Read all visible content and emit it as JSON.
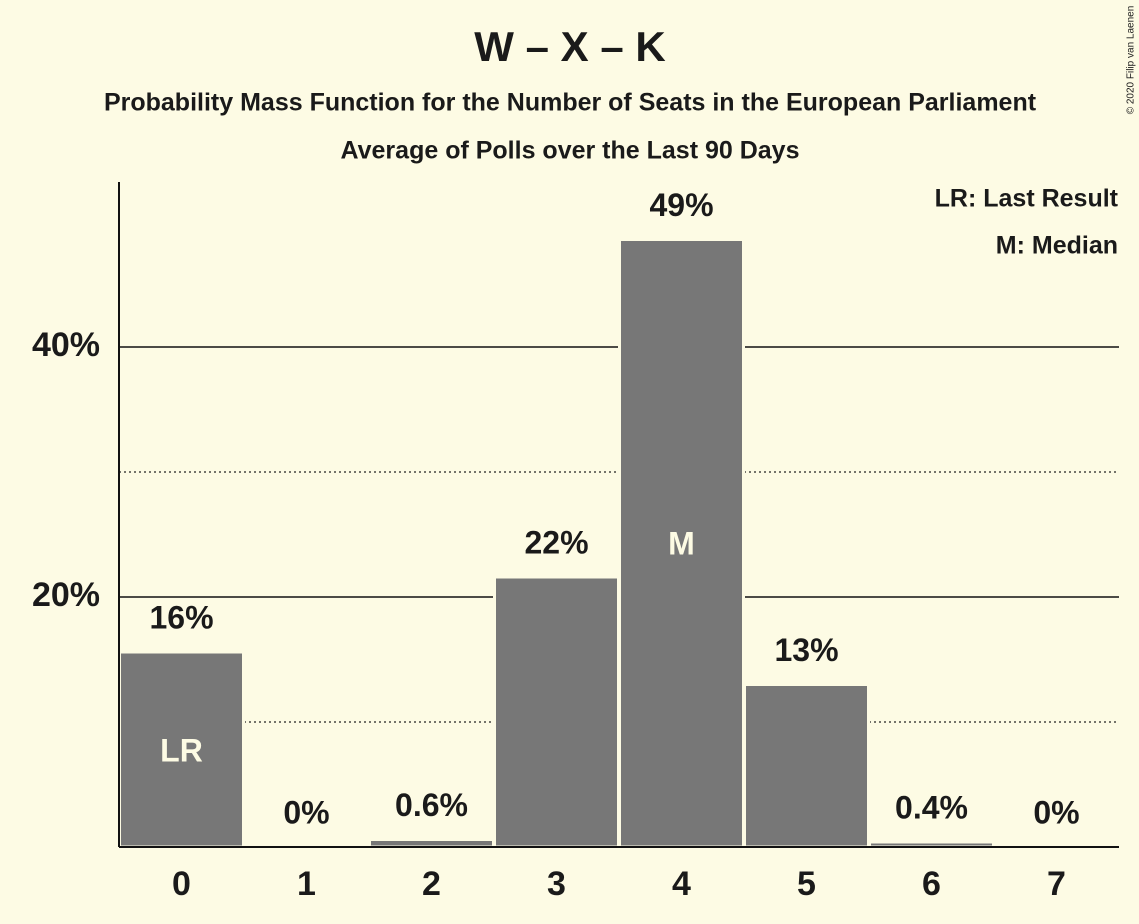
{
  "chart_data": {
    "type": "bar",
    "title": "W – X – K",
    "subtitle": "Probability Mass Function for the Number of Seats in the European Parliament",
    "subtitle2": "Average of Polls over the Last 90 Days",
    "categories": [
      "0",
      "1",
      "2",
      "3",
      "4",
      "5",
      "6",
      "7"
    ],
    "values": [
      15.6,
      0,
      0.6,
      21.6,
      48.6,
      13,
      0.4,
      0
    ],
    "value_labels": [
      "16%",
      "0%",
      "0.6%",
      "22%",
      "49%",
      "13%",
      "0.4%",
      "0%"
    ],
    "bar_labels": [
      "LR",
      null,
      null,
      null,
      "M",
      null,
      null,
      null
    ],
    "legend": [
      "LR: Last Result",
      "M: Median"
    ],
    "copyright": "© 2020 Filip van Laenen",
    "color": "#777777",
    "ylim": [
      0,
      53.2
    ],
    "yticks": [
      {
        "value": 20,
        "label": "20%"
      },
      {
        "value": 40,
        "label": "40%"
      }
    ],
    "minor_yticks": [
      10,
      30
    ],
    "grid": true
  }
}
